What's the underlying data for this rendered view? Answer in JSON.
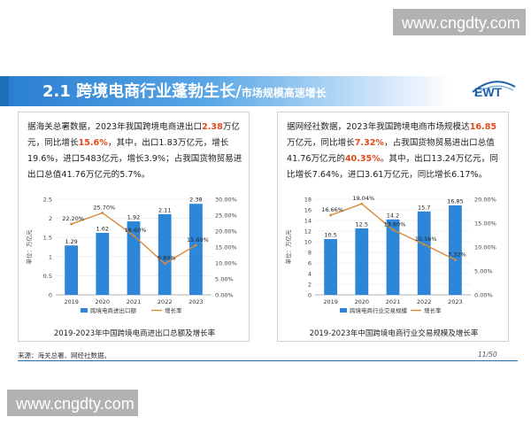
{
  "watermark": {
    "text": "www.cngdty.com"
  },
  "slide": {
    "title_main": "2.1 跨境电商行业蓬勃生长/",
    "title_sub": "市场规模高速增长",
    "logo_text": "EWT",
    "source": "来源：海关总署、网经社数据。",
    "page": "11/50"
  },
  "left_text": {
    "p1": "据海关总署数据，2023年我国跨境电商进出口",
    "h1": "2.38",
    "p2": "万亿元，同比增长",
    "h2": "15.6%",
    "p3": "，其中，出口1.83万亿元，增长19.6%，进口5483亿元，增长3.9%；占我国货物贸易进出口总值41.76万亿元的5.7%。"
  },
  "right_text": {
    "p1": "据网经社数据，2023年我国跨境电商市场规模达",
    "h1": "16.85",
    "p2": "万亿元，同比增长",
    "h2": "7.32%",
    "p3": "，占我国货物贸易进出口总值41.76万亿元的",
    "h3": "40.35%",
    "p4": "。其中，出口13.24万亿元，同比增长7.64%，进口3.61万亿元，同比增长6.17%。"
  },
  "chart_data": [
    {
      "type": "bar",
      "title": "2019-2023年中国跨境电商进出口总额及增长率",
      "categories": [
        "2019",
        "2020",
        "2021",
        "2022",
        "2023"
      ],
      "ylabel": "单位：万亿元",
      "ylim": [
        0,
        2.5
      ],
      "yticks": [
        "0",
        "0.5",
        "1",
        "1.5",
        "2",
        "2.5"
      ],
      "y2lim": [
        0,
        0.3
      ],
      "y2ticks": [
        "0.00%",
        "5.00%",
        "10.00%",
        "15.00%",
        "20.00%",
        "25.00%",
        "30.00%"
      ],
      "series": [
        {
          "name": "跨境电商进出口额",
          "type": "bar",
          "values": [
            1.29,
            1.62,
            1.92,
            2.11,
            2.38
          ],
          "labels": [
            "1.29",
            "1.62",
            "1.92",
            "2.11",
            "2.38"
          ],
          "color": "#2e86d8"
        },
        {
          "name": "增长率",
          "type": "line",
          "axis": "right",
          "values": [
            0.222,
            0.257,
            0.186,
            0.098,
            0.156
          ],
          "labels": [
            "22.20%",
            "25.70%",
            "18.60%",
            "9.80%",
            "15.60%"
          ],
          "color": "#d98a3a"
        }
      ],
      "legend": "bottom"
    },
    {
      "type": "bar",
      "title": "2019-2023年中国跨境电商行业交易规模及增长率",
      "categories": [
        "2019",
        "2020",
        "2021",
        "2022",
        "2023"
      ],
      "ylabel": "单位：万亿元",
      "ylim": [
        0,
        18
      ],
      "yticks": [
        "0",
        "2",
        "4",
        "6",
        "8",
        "10",
        "12",
        "14",
        "16",
        "18"
      ],
      "y2lim": [
        0,
        0.2
      ],
      "y2ticks": [
        "0.00%",
        "5.00%",
        "10.00%",
        "15.00%",
        "20.00%"
      ],
      "series": [
        {
          "name": "跨境电商行业交易规模",
          "type": "bar",
          "values": [
            10.5,
            12.5,
            14.2,
            15.7,
            16.85
          ],
          "labels": [
            "10.5",
            "12.5",
            "14.2",
            "15.7",
            "16.85"
          ],
          "color": "#2e86d8"
        },
        {
          "name": "增长率",
          "type": "line",
          "axis": "right",
          "values": [
            0.1666,
            0.1904,
            0.136,
            0.1056,
            0.0732
          ],
          "labels": [
            "16.66%",
            "19.04%",
            "13.60%",
            "10.56%",
            "7.32%"
          ],
          "color": "#d98a3a"
        }
      ],
      "legend": "bottom"
    }
  ]
}
